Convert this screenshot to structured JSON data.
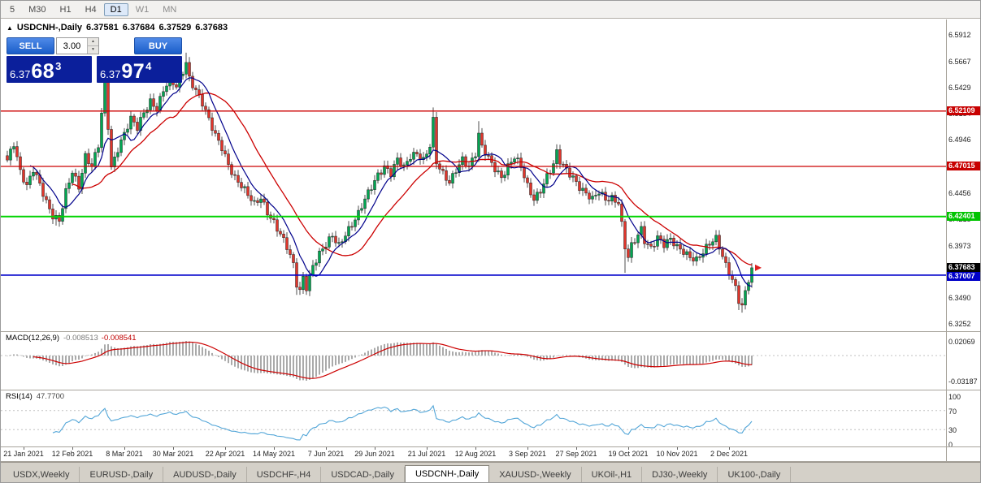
{
  "toolbar": {
    "timeframes": [
      "5",
      "M30",
      "H1",
      "H4",
      "D1",
      "W1",
      "MN"
    ],
    "active_timeframe": "D1"
  },
  "chart": {
    "collapse_arrow": "▲",
    "title": "USDCNH-,Daily",
    "open": "6.37581",
    "high": "6.37684",
    "low": "6.37529",
    "close": "6.37683"
  },
  "trade": {
    "sell_label": "SELL",
    "buy_label": "BUY",
    "volume": "3.00",
    "spin_up": "▲",
    "spin_down": "▼",
    "bid_prefix": "6.37",
    "bid_big": "68",
    "bid_sup": "3",
    "ask_prefix": "6.37",
    "ask_big": "97",
    "ask_sup": "4"
  },
  "macd": {
    "label": "MACD(12,26,9)",
    "value1": "-0.008513",
    "value2": "-0.008541",
    "axis_top": "0.02069",
    "axis_bottom": "-0.03187"
  },
  "rsi": {
    "label": "RSI(14)",
    "value": "47.7700",
    "levels": [
      100,
      70,
      30,
      0
    ]
  },
  "colors": {
    "candle_up": "#00a651",
    "candle_down": "#e0352b",
    "candle_outline": "#222222",
    "ma_fast": "#00008b",
    "ma_slow": "#cc0000",
    "macd_hist": "#aaaaaa",
    "macd_signal": "#cc0000",
    "rsi_line": "#53a6d8",
    "level_dash": "#c0c0c0",
    "arrow": "#dd2222"
  },
  "hlines": [
    {
      "price": 6.52109,
      "color": "#cc0000",
      "w": 1.3
    },
    {
      "price": 6.47015,
      "color": "#cc0000",
      "w": 1.3
    },
    {
      "price": 6.42401,
      "color": "#00d400",
      "w": 2
    },
    {
      "price": 6.37007,
      "color": "#0000cc",
      "w": 1.6
    }
  ],
  "badges": [
    {
      "text": "6.52109",
      "bg": "#c80000",
      "price": 6.52109
    },
    {
      "text": "6.47015",
      "bg": "#c80000",
      "price": 6.47015
    },
    {
      "text": "6.42401",
      "bg": "#00c400",
      "price": 6.42401
    },
    {
      "text": "6.37683",
      "bg": "#000000",
      "price": 6.37683
    },
    {
      "text": "6.37007",
      "bg": "#0000c8",
      "price": 6.37007
    }
  ],
  "tabs": {
    "items": [
      "USDX,Weekly",
      "EURUSD-,Daily",
      "AUDUSD-,Daily",
      "USDCHF-,H4",
      "USDCAD-,Daily",
      "USDCNH-,Daily",
      "XAUUSD-,Weekly",
      "UKOil-,H1",
      "DJ30-,Weekly",
      "UK100-,Daily"
    ],
    "active": "USDCNH-,Daily"
  },
  "chart_data": {
    "type": "candlestick",
    "symbol": "USDCNH-",
    "period": "Daily",
    "candle_count": 230,
    "x0": 8,
    "dx": 4,
    "wiggle": [
      0.003,
      0.0014
    ],
    "last_close": 6.37683,
    "y_ticks": [
      "6.5912",
      "6.5667",
      "6.5429",
      "6.5184",
      "6.4946",
      "6.4701",
      "6.4456",
      "6.4218",
      "6.3973",
      "6.3728",
      "6.3490",
      "6.3252"
    ],
    "x_labels": [
      {
        "i": 5,
        "label": "21 Jan 2021"
      },
      {
        "i": 20,
        "label": "12 Feb 2021"
      },
      {
        "i": 36,
        "label": "8 Mar 2021"
      },
      {
        "i": 51,
        "label": "30 Mar 2021"
      },
      {
        "i": 67,
        "label": "22 Apr 2021"
      },
      {
        "i": 82,
        "label": "14 May 2021"
      },
      {
        "i": 98,
        "label": "7 Jun 2021"
      },
      {
        "i": 113,
        "label": "29 Jun 2021"
      },
      {
        "i": 129,
        "label": "21 Jul 2021"
      },
      {
        "i": 144,
        "label": "12 Aug 2021"
      },
      {
        "i": 160,
        "label": "3 Sep 2021"
      },
      {
        "i": 175,
        "label": "27 Sep 2021"
      },
      {
        "i": 191,
        "label": "19 Oct 2021"
      },
      {
        "i": 206,
        "label": "10 Nov 2021"
      },
      {
        "i": 222,
        "label": "2 Dec 2021"
      }
    ],
    "close_anchors": [
      [
        0,
        6.476
      ],
      [
        2,
        6.49
      ],
      [
        4,
        6.464
      ],
      [
        6,
        6.452
      ],
      [
        8,
        6.469
      ],
      [
        10,
        6.455
      ],
      [
        12,
        6.437
      ],
      [
        14,
        6.423
      ],
      [
        16,
        6.419
      ],
      [
        18,
        6.447
      ],
      [
        20,
        6.467
      ],
      [
        22,
        6.452
      ],
      [
        24,
        6.479
      ],
      [
        26,
        6.469
      ],
      [
        28,
        6.489
      ],
      [
        30,
        6.548
      ],
      [
        31,
        6.508
      ],
      [
        32,
        6.47
      ],
      [
        34,
        6.487
      ],
      [
        36,
        6.5
      ],
      [
        38,
        6.513
      ],
      [
        40,
        6.505
      ],
      [
        42,
        6.52
      ],
      [
        44,
        6.531
      ],
      [
        46,
        6.524
      ],
      [
        48,
        6.54
      ],
      [
        50,
        6.549
      ],
      [
        52,
        6.543
      ],
      [
        54,
        6.558
      ],
      [
        55,
        6.567
      ],
      [
        56,
        6.552
      ],
      [
        58,
        6.541
      ],
      [
        60,
        6.528
      ],
      [
        62,
        6.512
      ],
      [
        64,
        6.498
      ],
      [
        66,
        6.488
      ],
      [
        68,
        6.473
      ],
      [
        70,
        6.46
      ],
      [
        72,
        6.452
      ],
      [
        74,
        6.443
      ],
      [
        76,
        6.435
      ],
      [
        78,
        6.442
      ],
      [
        80,
        6.429
      ],
      [
        82,
        6.419
      ],
      [
        84,
        6.407
      ],
      [
        86,
        6.395
      ],
      [
        88,
        6.379
      ],
      [
        89,
        6.362
      ],
      [
        90,
        6.356
      ],
      [
        91,
        6.369
      ],
      [
        92,
        6.36
      ],
      [
        94,
        6.379
      ],
      [
        96,
        6.389
      ],
      [
        98,
        6.397
      ],
      [
        100,
        6.406
      ],
      [
        102,
        6.398
      ],
      [
        104,
        6.409
      ],
      [
        106,
        6.417
      ],
      [
        108,
        6.426
      ],
      [
        110,
        6.439
      ],
      [
        112,
        6.451
      ],
      [
        114,
        6.463
      ],
      [
        116,
        6.471
      ],
      [
        118,
        6.464
      ],
      [
        120,
        6.476
      ],
      [
        122,
        6.468
      ],
      [
        124,
        6.479
      ],
      [
        126,
        6.483
      ],
      [
        128,
        6.477
      ],
      [
        130,
        6.49
      ],
      [
        131,
        6.512
      ],
      [
        132,
        6.473
      ],
      [
        134,
        6.462
      ],
      [
        136,
        6.455
      ],
      [
        138,
        6.468
      ],
      [
        140,
        6.478
      ],
      [
        142,
        6.47
      ],
      [
        144,
        6.481
      ],
      [
        145,
        6.498
      ],
      [
        146,
        6.487
      ],
      [
        148,
        6.478
      ],
      [
        150,
        6.469
      ],
      [
        152,
        6.461
      ],
      [
        154,
        6.47
      ],
      [
        156,
        6.478
      ],
      [
        158,
        6.469
      ],
      [
        160,
        6.452
      ],
      [
        162,
        6.441
      ],
      [
        164,
        6.449
      ],
      [
        166,
        6.461
      ],
      [
        168,
        6.471
      ],
      [
        169,
        6.482
      ],
      [
        170,
        6.474
      ],
      [
        172,
        6.467
      ],
      [
        174,
        6.461
      ],
      [
        176,
        6.452
      ],
      [
        178,
        6.445
      ],
      [
        180,
        6.439
      ],
      [
        182,
        6.446
      ],
      [
        184,
        6.44
      ],
      [
        186,
        6.442
      ],
      [
        188,
        6.438
      ],
      [
        190,
        6.396
      ],
      [
        191,
        6.386
      ],
      [
        192,
        6.396
      ],
      [
        194,
        6.406
      ],
      [
        195,
        6.412
      ],
      [
        196,
        6.402
      ],
      [
        198,
        6.396
      ],
      [
        200,
        6.406
      ],
      [
        202,
        6.398
      ],
      [
        204,
        6.402
      ],
      [
        206,
        6.395
      ],
      [
        208,
        6.392
      ],
      [
        210,
        6.388
      ],
      [
        212,
        6.385
      ],
      [
        214,
        6.391
      ],
      [
        216,
        6.398
      ],
      [
        218,
        6.403
      ],
      [
        219,
        6.396
      ],
      [
        220,
        6.388
      ],
      [
        221,
        6.38
      ],
      [
        222,
        6.374
      ],
      [
        223,
        6.367
      ],
      [
        224,
        6.359
      ],
      [
        225,
        6.347
      ],
      [
        226,
        6.341
      ],
      [
        227,
        6.353
      ],
      [
        228,
        6.365
      ],
      [
        229,
        6.37683
      ]
    ],
    "wick_up_overrides": {
      "30": 0.015,
      "55": 0.009,
      "131": 0.009,
      "145": 0.011
    },
    "wick_dn_overrides": {
      "15": 0.006,
      "89": 0.007,
      "190": 0.022,
      "225": 0.006,
      "226": 0.007
    },
    "indicators": [
      {
        "name": "MA fast",
        "period": 8
      },
      {
        "name": "MA slow",
        "period": 21
      },
      {
        "name": "MACD",
        "params": [
          12,
          26,
          9
        ]
      },
      {
        "name": "RSI",
        "params": [
          14
        ]
      }
    ]
  }
}
